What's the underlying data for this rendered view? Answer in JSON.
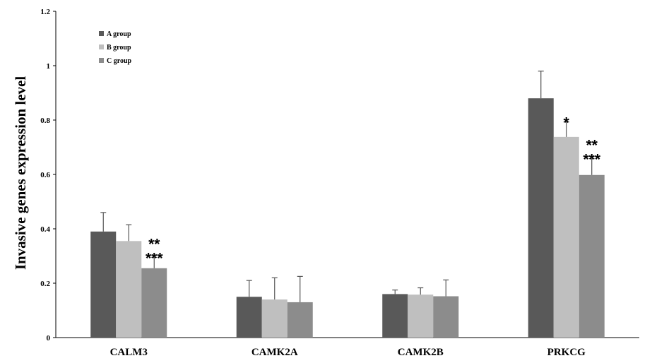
{
  "chart_data": {
    "type": "bar",
    "title": "",
    "xlabel": "",
    "ylabel": "Invasive genes expression level",
    "ylim": [
      0,
      1.2
    ],
    "yticks": [
      "0",
      "0.2",
      "0.4",
      "0.6",
      "0.8",
      "1",
      "1.2"
    ],
    "grid": false,
    "legend_position": "top-left",
    "categories": [
      "CALM3",
      "CAMK2A",
      "CAMK2B",
      "PRKCG"
    ],
    "series": [
      {
        "name": "A group",
        "color": "#595959",
        "values": [
          0.39,
          0.15,
          0.16,
          0.88
        ],
        "errors": [
          0.07,
          0.06,
          0.015,
          0.1
        ]
      },
      {
        "name": "B group",
        "color": "#bfbfbf",
        "values": [
          0.355,
          0.14,
          0.158,
          0.738
        ],
        "errors": [
          0.06,
          0.08,
          0.025,
          0.055
        ]
      },
      {
        "name": "C group",
        "color": "#8c8c8c",
        "values": [
          0.255,
          0.13,
          0.152,
          0.598
        ],
        "errors": [
          0.04,
          0.095,
          0.06,
          0.06
        ]
      }
    ],
    "annotations": [
      {
        "category": 0,
        "series": 2,
        "lines": [
          "**",
          "***"
        ]
      },
      {
        "category": 3,
        "series": 1,
        "lines": [
          "*"
        ]
      },
      {
        "category": 3,
        "series": 2,
        "lines": [
          "**",
          "***"
        ]
      }
    ]
  }
}
